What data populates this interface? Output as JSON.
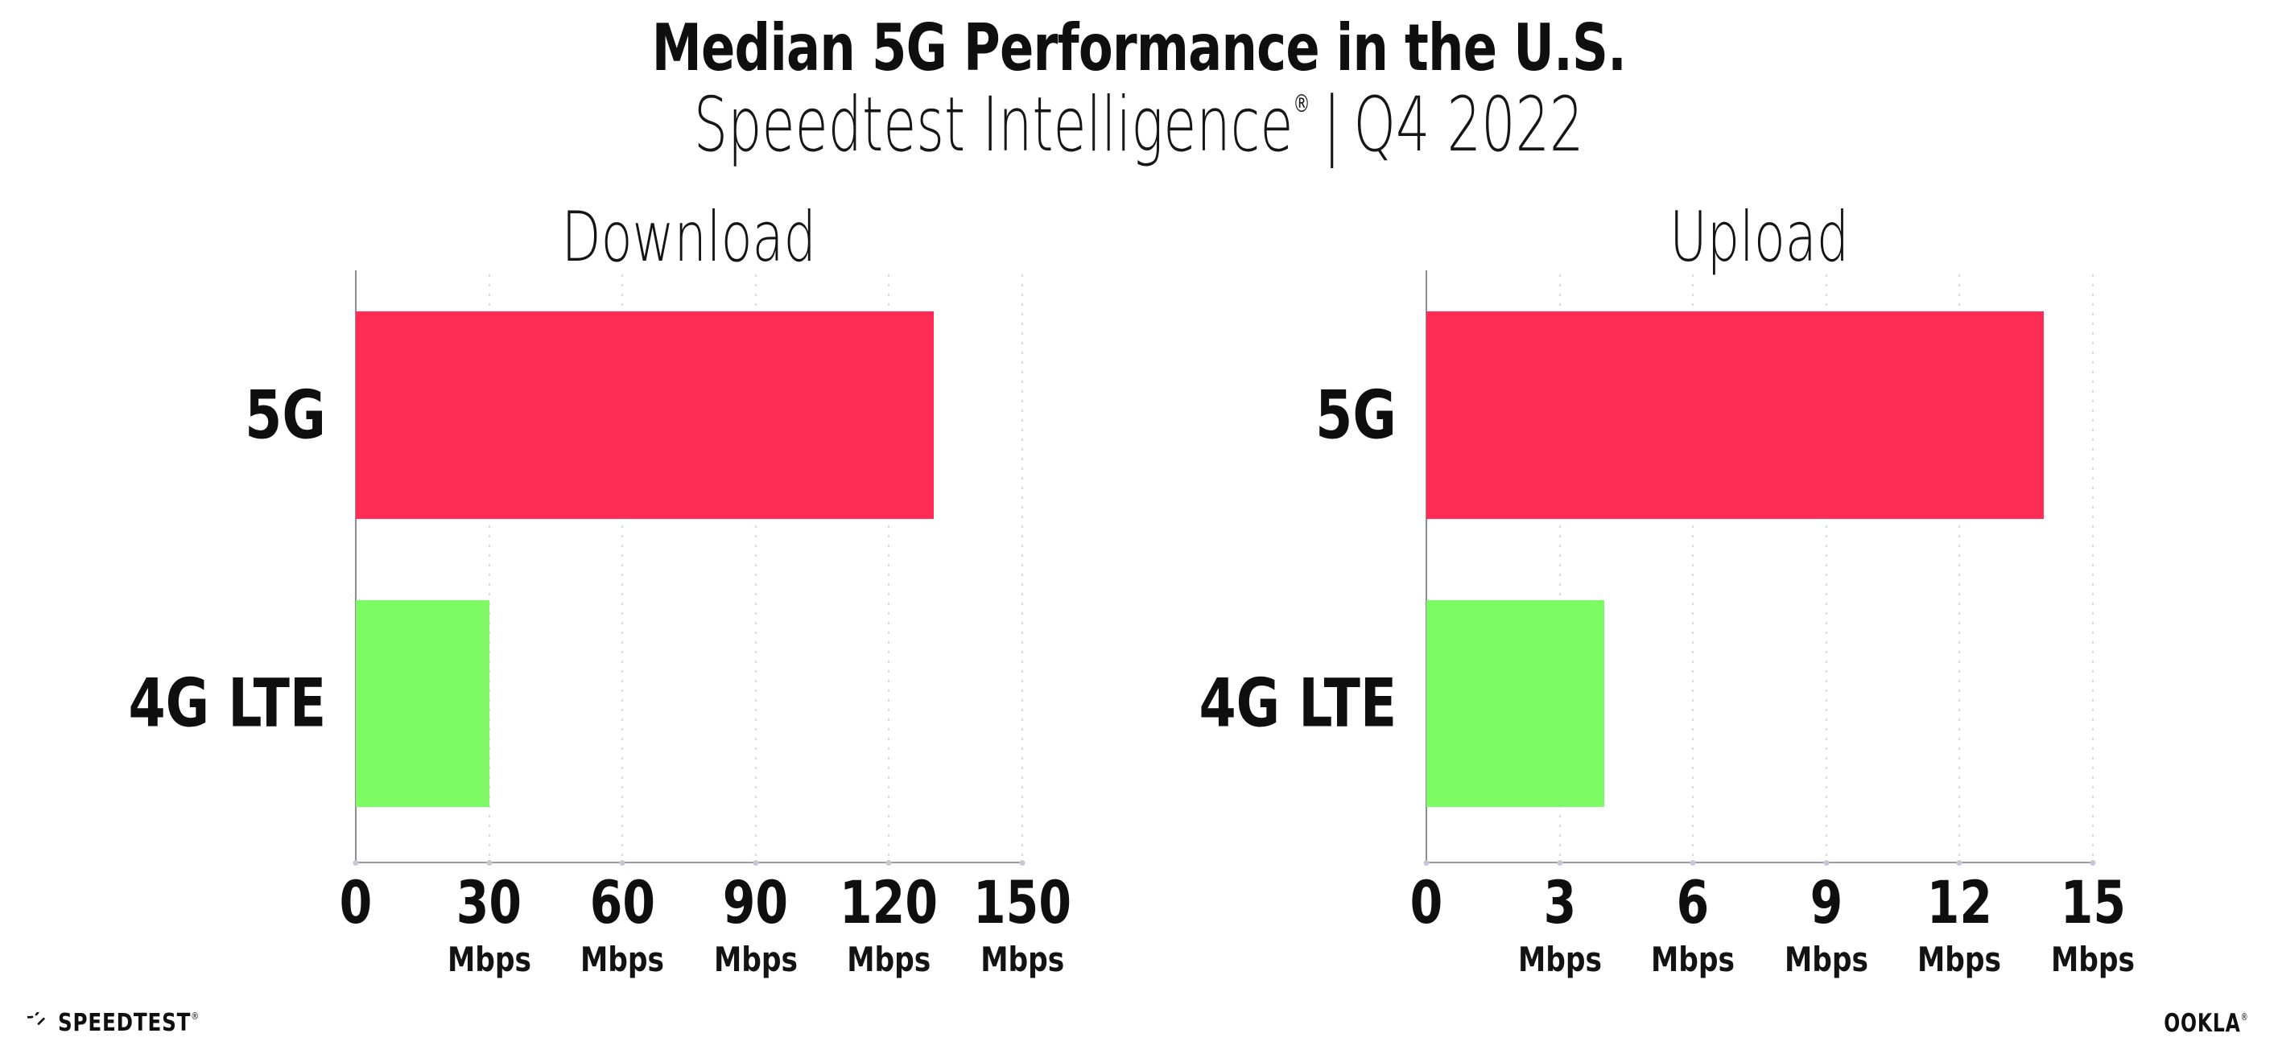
{
  "header": {
    "title": "Median 5G Performance in the U.S.",
    "subtitle_brand": "Speedtest Intelligence",
    "subtitle_reg": "®",
    "subtitle_sep": "|",
    "subtitle_period": "Q4 2022"
  },
  "chart_data": [
    {
      "type": "bar",
      "orientation": "horizontal",
      "title": "Download",
      "categories": [
        "5G",
        "4G LTE"
      ],
      "values": [
        130,
        30
      ],
      "unit": "Mbps",
      "xlim": [
        0,
        150
      ],
      "xticks": [
        0,
        30,
        60,
        90,
        120,
        150
      ],
      "grid": "dotted-vertical",
      "legend": "none"
    },
    {
      "type": "bar",
      "orientation": "horizontal",
      "title": "Upload",
      "categories": [
        "5G",
        "4G LTE"
      ],
      "values": [
        13.9,
        4
      ],
      "unit": "Mbps",
      "xlim": [
        0,
        15
      ],
      "xticks": [
        0,
        3,
        6,
        9,
        12,
        15
      ],
      "grid": "dotted-vertical",
      "legend": "none"
    }
  ],
  "colors": {
    "bar_5g": "#FF2D55",
    "bar_4g_lte": "#7DFA64",
    "axis": "#8C8C96",
    "gridline": "#D9D9E6",
    "tick_dot": "#C6C6D6",
    "text": "#0F0F0F"
  },
  "footer": {
    "speedtest_label": "SPEEDTEST",
    "speedtest_mark": "®",
    "ookla_label": "OOKLA",
    "ookla_mark": "®"
  }
}
